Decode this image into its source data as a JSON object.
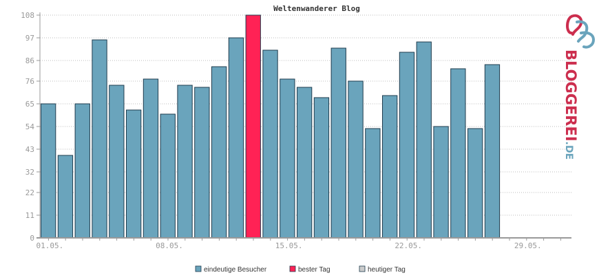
{
  "chart_data": {
    "type": "bar",
    "title": "Weltenwanderer Blog",
    "ylim": [
      0,
      108
    ],
    "yticks": [
      "0",
      "11",
      "22",
      "32",
      "43",
      "54",
      "65",
      "76",
      "86",
      "97",
      "108"
    ],
    "ytick_values": [
      0,
      11,
      22,
      32,
      43,
      54,
      65,
      76,
      86,
      97,
      108
    ],
    "xticks": [
      "01.05.",
      "08.05.",
      "15.05.",
      "22.05.",
      "29.05."
    ],
    "xtick_day_index": [
      1,
      8,
      15,
      22,
      29
    ],
    "days_in_axis": 31,
    "grid": true,
    "series": [
      {
        "name": "eindeutige Besucher",
        "color": "#6aa4bc",
        "values": [
          65,
          40,
          65,
          96,
          74,
          62,
          77,
          60,
          74,
          73,
          83,
          97,
          108,
          91,
          77,
          73,
          68,
          92,
          76,
          53,
          69,
          90,
          95,
          54,
          82,
          53,
          84
        ]
      }
    ],
    "best_day_index": 12,
    "colors": {
      "bar": "#6aa4bc",
      "best": "#ff2255",
      "today": "#cccccc",
      "outline": "#1f3b4d",
      "grid": "#bbbbbb",
      "axis": "#999999"
    },
    "legend": [
      {
        "label": "eindeutige Besucher",
        "color": "#6aa4bc"
      },
      {
        "label": "bester Tag",
        "color": "#ff2255"
      },
      {
        "label": "heutiger Tag",
        "color": "#cccccc"
      }
    ],
    "legend_position": "bottom"
  },
  "logo": {
    "text_main": "BLOGGEREI",
    "text_suffix": ".DE",
    "color_main": "#cc2e4e",
    "color_suffix": "#6aa4bc"
  }
}
